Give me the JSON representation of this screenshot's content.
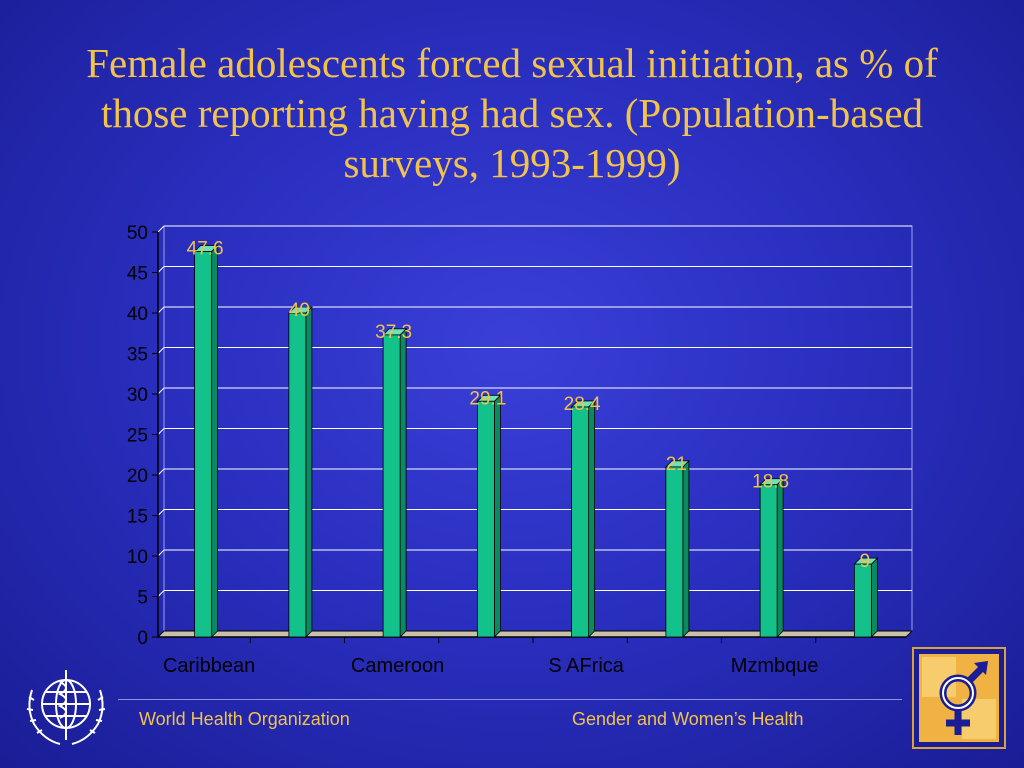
{
  "title": "Female adolescents forced sexual initiation, as % of those reporting having had sex.  (Population-based surveys, 1993-1999)",
  "footer": {
    "left": "World Health Organization",
    "right": "Gender and Women’s Health"
  },
  "logos": {
    "left": "who-emblem-icon",
    "right": "gender-symbol-icon"
  },
  "colors": {
    "bar": "#13c28b",
    "label": "#f2c24a",
    "text": "#000000",
    "floor": "#c9c2a8"
  },
  "chart_data": {
    "type": "bar",
    "categories": [
      "Caribbean",
      "",
      "Cameroon",
      "",
      "S AFrica",
      "",
      "Mzmbque",
      ""
    ],
    "values": [
      47.6,
      40,
      37.3,
      29.1,
      28.4,
      21,
      18.8,
      9
    ],
    "value_labels": [
      "47.6",
      "40",
      "37.3",
      "29.1",
      "28.4",
      "21",
      "18.8",
      "9"
    ],
    "ylim": [
      0,
      50
    ],
    "yticks": [
      0,
      5,
      10,
      15,
      20,
      25,
      30,
      35,
      40,
      45,
      50
    ],
    "grid": true,
    "title": "",
    "xlabel": "",
    "ylabel": ""
  }
}
